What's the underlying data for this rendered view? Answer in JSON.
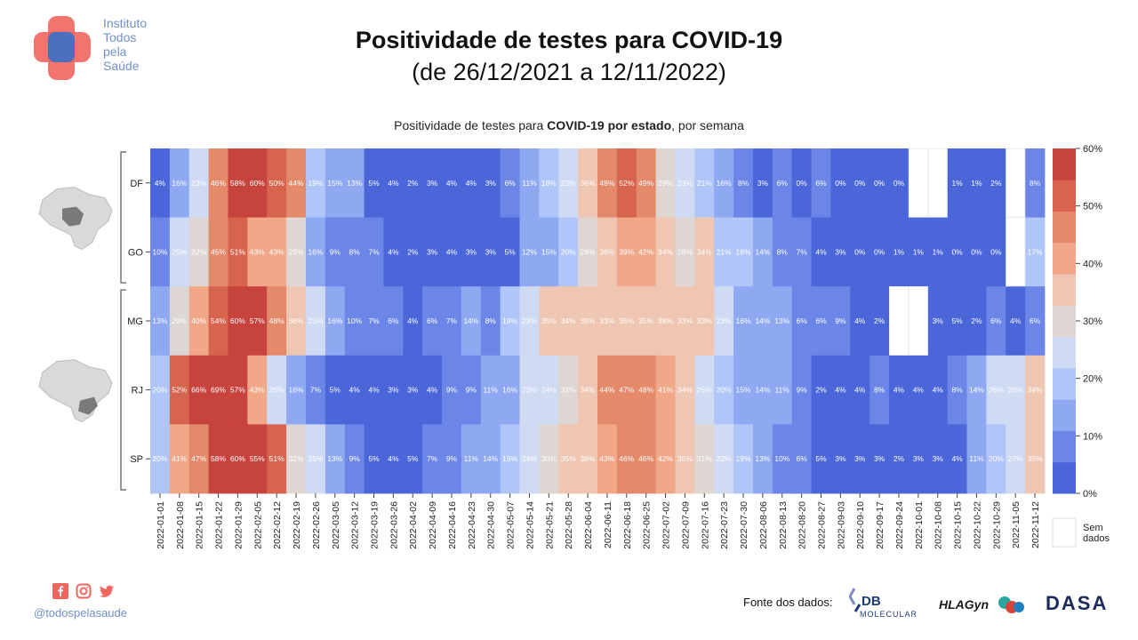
{
  "org": {
    "line1": "Instituto",
    "line2": "Todos",
    "line3": "pela",
    "line4": "Saúde"
  },
  "header": {
    "title": "Positividade de testes para COVID-19",
    "subtitle": "(de 26/12/2021 a 12/11/2022)"
  },
  "colors": {
    "accent": "#6f8fc8",
    "logo_red": "#f0665e",
    "logo_blue": "#4a6fbf"
  },
  "chart_title": {
    "prefix": "Positividade de testes para ",
    "bold": "COVID-19 por estado",
    "suffix": ", por semana"
  },
  "chart_data": {
    "type": "heatmap",
    "title": "Positividade de testes para COVID-19 por estado, por semana",
    "rows": [
      "DF",
      "GO",
      "MG",
      "RJ",
      "SP"
    ],
    "groups": [
      [
        "DF",
        "GO"
      ],
      [
        "MG",
        "RJ",
        "SP"
      ]
    ],
    "weeks": [
      "2022-01-01",
      "2022-01-08",
      "2022-01-15",
      "2022-01-22",
      "2022-01-29",
      "2022-02-05",
      "2022-02-12",
      "2022-02-19",
      "2022-02-26",
      "2022-03-05",
      "2022-03-12",
      "2022-03-19",
      "2022-03-26",
      "2022-04-02",
      "2022-04-09",
      "2022-04-16",
      "2022-04-23",
      "2022-04-30",
      "2022-05-07",
      "2022-05-14",
      "2022-05-21",
      "2022-05-28",
      "2022-06-04",
      "2022-06-11",
      "2022-06-18",
      "2022-06-25",
      "2022-07-02",
      "2022-07-09",
      "2022-07-16",
      "2022-07-23",
      "2022-07-30",
      "2022-08-06",
      "2022-08-13",
      "2022-08-20",
      "2022-08-27",
      "2022-09-03",
      "2022-09-10",
      "2022-09-17",
      "2022-09-24",
      "2022-10-01",
      "2022-10-08",
      "2022-10-15",
      "2022-10-22",
      "2022-10-29",
      "2022-11-05",
      "2022-11-12"
    ],
    "values": {
      "DF": [
        4,
        16,
        23,
        46,
        58,
        60,
        50,
        44,
        19,
        15,
        13,
        5,
        4,
        2,
        3,
        4,
        4,
        3,
        6,
        11,
        18,
        23,
        36,
        48,
        52,
        49,
        29,
        23,
        21,
        16,
        8,
        3,
        6,
        0,
        6,
        0,
        0,
        0,
        0,
        null,
        null,
        1,
        1,
        2,
        null,
        8
      ],
      "GO": [
        10,
        25,
        32,
        45,
        51,
        43,
        43,
        29,
        16,
        9,
        8,
        7,
        4,
        2,
        3,
        4,
        3,
        3,
        5,
        12,
        15,
        20,
        28,
        36,
        39,
        42,
        34,
        28,
        34,
        21,
        18,
        14,
        8,
        7,
        4,
        3,
        0,
        0,
        1,
        1,
        1,
        0,
        0,
        0,
        null,
        17
      ],
      "MG": [
        13,
        29,
        40,
        54,
        60,
        57,
        48,
        36,
        23,
        16,
        10,
        7,
        6,
        4,
        6,
        7,
        14,
        8,
        19,
        23,
        35,
        34,
        35,
        33,
        35,
        35,
        38,
        33,
        33,
        23,
        16,
        14,
        13,
        6,
        6,
        9,
        4,
        2,
        null,
        null,
        3,
        5,
        2,
        6,
        4,
        6
      ],
      "RJ": [
        20,
        52,
        66,
        69,
        57,
        43,
        26,
        16,
        7,
        5,
        4,
        4,
        3,
        3,
        4,
        9,
        9,
        11,
        16,
        23,
        24,
        32,
        34,
        44,
        47,
        48,
        41,
        34,
        25,
        20,
        15,
        14,
        11,
        9,
        2,
        4,
        4,
        8,
        4,
        4,
        4,
        8,
        14,
        26,
        26,
        34
      ],
      "SP": [
        20,
        41,
        47,
        58,
        60,
        55,
        51,
        32,
        25,
        13,
        9,
        5,
        4,
        5,
        7,
        9,
        11,
        14,
        19,
        24,
        30,
        35,
        38,
        43,
        46,
        46,
        42,
        35,
        31,
        22,
        19,
        13,
        10,
        6,
        5,
        3,
        3,
        3,
        2,
        3,
        3,
        4,
        11,
        20,
        27,
        35
      ]
    },
    "value_suffix": "%",
    "colorbar": {
      "min": 0,
      "max": 60,
      "ticks": [
        "0%",
        "10%",
        "20%",
        "30%",
        "40%",
        "50%",
        "60%"
      ]
    },
    "missing_label": "Sem dados",
    "palette": [
      "#4a66d9",
      "#6b86e6",
      "#8fa8f2",
      "#b1c6f8",
      "#cfdaf3",
      "#ddd6d2",
      "#efc6b2",
      "#f1a888",
      "#e48a6a",
      "#d7644e",
      "#c7433d"
    ]
  },
  "footer": {
    "handle": "@todospelasaude",
    "source_label": "Fonte dos dados:",
    "partners": [
      "DB",
      "MOLECULAR",
      "HLAGyn",
      "DASA"
    ]
  },
  "icons": [
    "facebook-icon",
    "instagram-icon",
    "twitter-icon",
    "brazil-map-icon"
  ]
}
